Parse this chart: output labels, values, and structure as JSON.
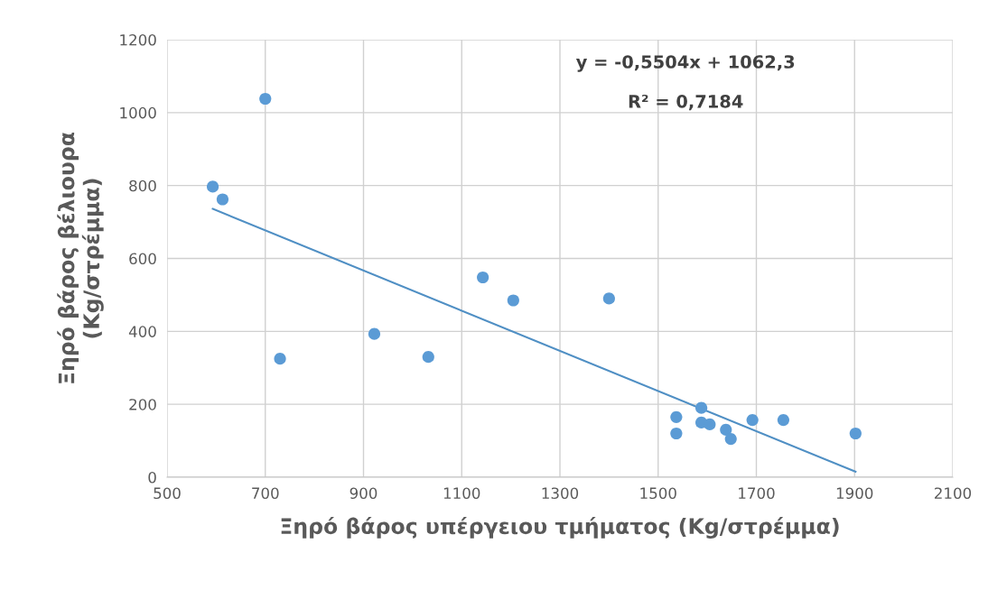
{
  "chart_data": {
    "type": "scatter",
    "xlabel": "Ξηρό βάρος υπέργειου τμήματος (Kg/στρέμμα)",
    "ylabel": "Ξηρό βάρος βέλιουρα\n(Kg/στρέμμα)",
    "series": [
      {
        "color": "#5b9bd5",
        "marker": "circle",
        "x": [
          593,
          613,
          700,
          730,
          922,
          1032,
          1143,
          1205,
          1400,
          1537,
          1537,
          1588,
          1588,
          1598,
          1605,
          1638,
          1648,
          1692,
          1755,
          1902
        ],
        "values": [
          797,
          762,
          1038,
          325,
          393,
          330,
          548,
          485,
          490,
          165,
          120,
          190,
          150,
          null,
          145,
          130,
          105,
          157,
          157,
          120
        ]
      },
      {
        "type": "line",
        "color": "#4f8fc4",
        "x": [
          593,
          1902
        ],
        "values": [
          736,
          15
        ]
      }
    ],
    "annotations": [
      "y = -0,5504x + 1062,3",
      "R² = 0,7184"
    ],
    "xlim": [
      500,
      2100
    ],
    "xticks": [
      500,
      700,
      900,
      1100,
      1300,
      1500,
      1700,
      1900,
      2100
    ],
    "ylim": [
      0,
      1200
    ],
    "yticks": [
      0,
      200,
      400,
      600,
      800,
      1000,
      1200
    ],
    "grid": true
  }
}
